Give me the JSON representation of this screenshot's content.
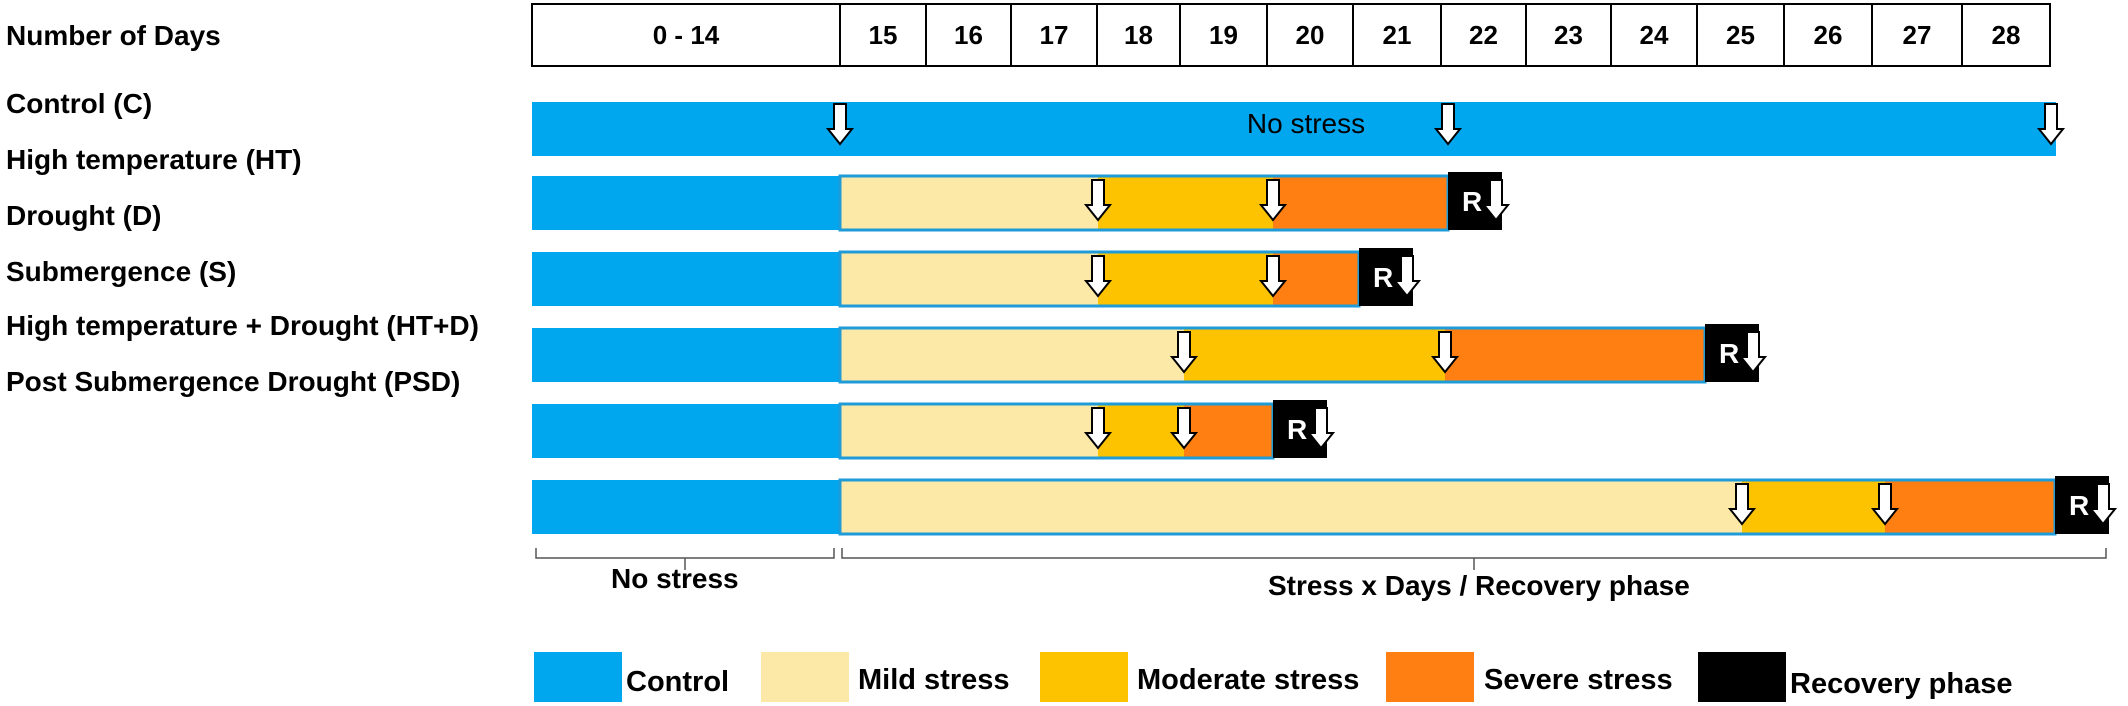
{
  "header": {
    "title": "Number of Days",
    "day_cells": [
      "0 - 14",
      "15",
      "16",
      "17",
      "18",
      "19",
      "20",
      "21",
      "22",
      "23",
      "24",
      "25",
      "26",
      "27",
      "28"
    ]
  },
  "colors": {
    "control": "#00a6ee",
    "mild": "#fce9a8",
    "moderate": "#fdc300",
    "severe": "#ff7f13",
    "recovery": "#000000",
    "outline": "#1f9bd8"
  },
  "rows": [
    {
      "label": "Control (C)",
      "bar_text": "No stress"
    },
    {
      "label": "High temperature (HT)",
      "recovery_label": "R"
    },
    {
      "label": "Drought (D)",
      "recovery_label": "R"
    },
    {
      "label": "Submergence (S)",
      "recovery_label": "R"
    },
    {
      "label": "High temperature + Drought (HT+D)",
      "recovery_label": "R"
    },
    {
      "label": "Post Submergence Drought (PSD)",
      "recovery_label": "R"
    }
  ],
  "timeline": {
    "no_stress_label": "No stress",
    "stress_label": "Stress x Days / Recovery phase"
  },
  "legend": [
    {
      "key": "control",
      "label": "Control"
    },
    {
      "key": "mild",
      "label": "Mild stress"
    },
    {
      "key": "moderate",
      "label": "Moderate stress"
    },
    {
      "key": "severe",
      "label": "Severe stress"
    },
    {
      "key": "recovery",
      "label": "Recovery phase"
    }
  ]
}
